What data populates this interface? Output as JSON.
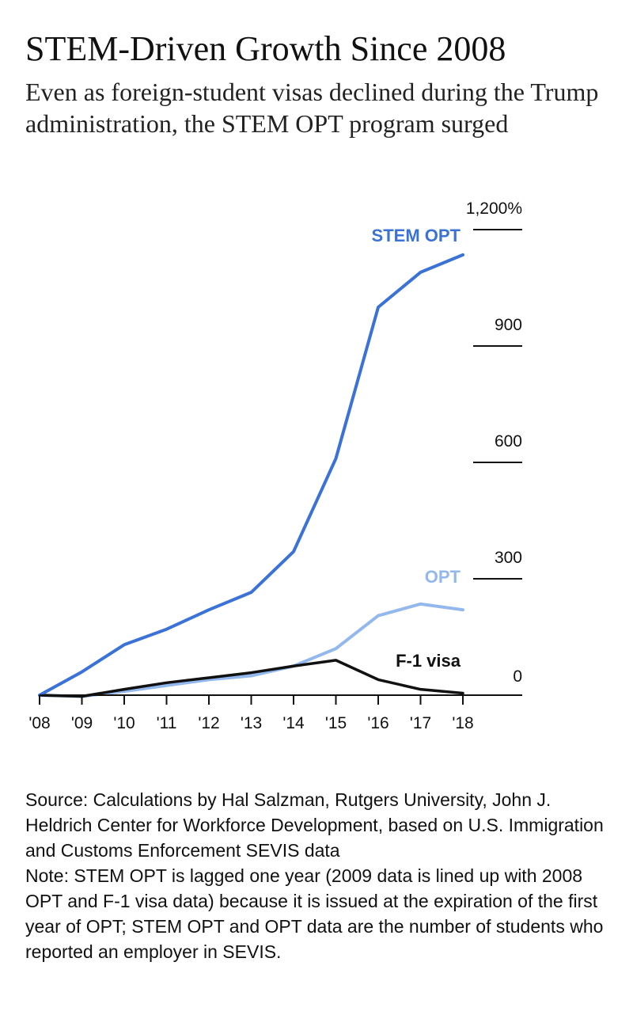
{
  "title": "STEM-Driven Growth Since 2008",
  "subtitle": "Even as foreign-student visas declined during the Trump administration, the STEM OPT program surged",
  "source": "Source: Calculations by Hal Salzman, Rutgers University, John J. Heldrich Center for Workforce Development, based on U.S. Immigration and Customs Enforcement SEVIS data",
  "note": "Note: STEM OPT is lagged one year (2009 data is lined up with 2008 OPT and F-1 visa data) because it is issued at the expiration of the first year of OPT; STEM OPT and OPT data are the number of students who reported an employer in SEVIS.",
  "chart_data": {
    "type": "line",
    "x": [
      "'08",
      "'09",
      "'10",
      "'11",
      "'12",
      "'13",
      "'14",
      "'15",
      "'16",
      "'17",
      "'18"
    ],
    "ylim": [
      0,
      1200
    ],
    "y_ticks": [
      "0",
      "300",
      "600",
      "900",
      "1,200%"
    ],
    "y_tick_values": [
      0,
      300,
      600,
      900,
      1200
    ],
    "grid": false,
    "series": [
      {
        "name": "STEM OPT",
        "color": "#3a72d8",
        "values": [
          0,
          60,
          130,
          170,
          220,
          265,
          370,
          610,
          1000,
          1090,
          1135
        ]
      },
      {
        "name": "OPT",
        "color": "#93b8ee",
        "values": [
          0,
          -3,
          10,
          25,
          40,
          50,
          75,
          120,
          205,
          235,
          220
        ]
      },
      {
        "name": "F-1 visa",
        "color": "#111111",
        "values": [
          0,
          -3,
          15,
          32,
          45,
          58,
          75,
          90,
          40,
          15,
          5
        ]
      }
    ]
  }
}
